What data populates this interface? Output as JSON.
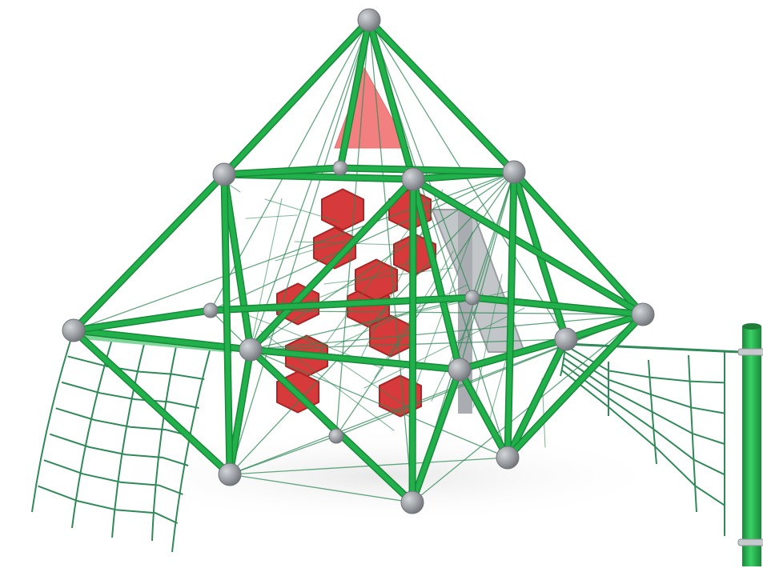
{
  "image": {
    "subject": "",
    "colors": {
      "frame": "#21b04b",
      "frame_dark": "#178a37",
      "net": "#2f8a57",
      "panel": "#d63a3a",
      "panel_light": "#f06b6b",
      "connector": "#9a9ea3",
      "connector_dark": "#6f7479",
      "slide": "#b8bcc0",
      "background": "#ffffff"
    }
  }
}
